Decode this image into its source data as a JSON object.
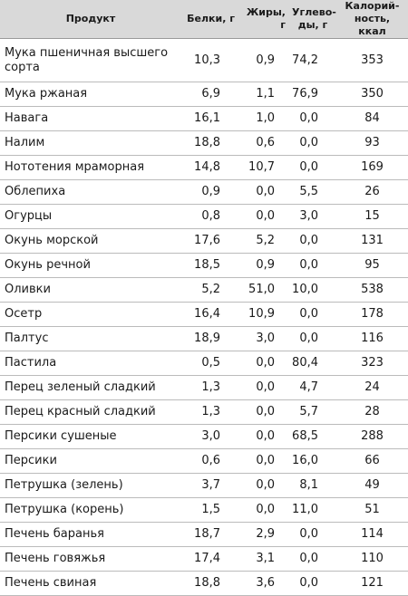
{
  "table": {
    "header": [
      "Продукт",
      "Белки, г",
      "Жиры, г",
      "Углево-\nды, г",
      "Калорий-\nность, ккал"
    ],
    "rows": [
      [
        "Мука пшеничная высшего\nсорта",
        "10,3",
        "0,9",
        "74,2",
        "353"
      ],
      [
        "Мука ржаная",
        "6,9",
        "1,1",
        "76,9",
        "350"
      ],
      [
        "Навага",
        "16,1",
        "1,0",
        "0,0",
        "84"
      ],
      [
        "Налим",
        "18,8",
        "0,6",
        "0,0",
        "93"
      ],
      [
        "Нототения мраморная",
        "14,8",
        "10,7",
        "0,0",
        "169"
      ],
      [
        "Облепиха",
        "0,9",
        "0,0",
        "5,5",
        "26"
      ],
      [
        "Огурцы",
        "0,8",
        "0,0",
        "3,0",
        "15"
      ],
      [
        "Окунь морской",
        "17,6",
        "5,2",
        "0,0",
        "131"
      ],
      [
        "Окунь речной",
        "18,5",
        "0,9",
        "0,0",
        "95"
      ],
      [
        "Оливки",
        "5,2",
        "51,0",
        "10,0",
        "538"
      ],
      [
        "Осетр",
        "16,4",
        "10,9",
        "0,0",
        "178"
      ],
      [
        "Палтус",
        "18,9",
        "3,0",
        "0,0",
        "116"
      ],
      [
        "Пастила",
        "0,5",
        "0,0",
        "80,4",
        "323"
      ],
      [
        "Перец зеленый сладкий",
        "1,3",
        "0,0",
        "4,7",
        "24"
      ],
      [
        "Перец красный сладкий",
        "1,3",
        "0,0",
        "5,7",
        "28"
      ],
      [
        "Персики сушеные",
        "3,0",
        "0,0",
        "68,5",
        "288"
      ],
      [
        "Персики",
        "0,6",
        "0,0",
        "16,0",
        "66"
      ],
      [
        "Петрушка (зелень)",
        "3,7",
        "0,0",
        "8,1",
        "49"
      ],
      [
        "Петрушка (корень)",
        "1,5",
        "0,0",
        "11,0",
        "51"
      ],
      [
        "Печень баранья",
        "18,7",
        "2,9",
        "0,0",
        "114"
      ],
      [
        "Печень говяжья",
        "17,4",
        "3,1",
        "0,0",
        "110"
      ],
      [
        "Печень свиная",
        "18,8",
        "3,6",
        "0,0",
        "121"
      ]
    ]
  }
}
